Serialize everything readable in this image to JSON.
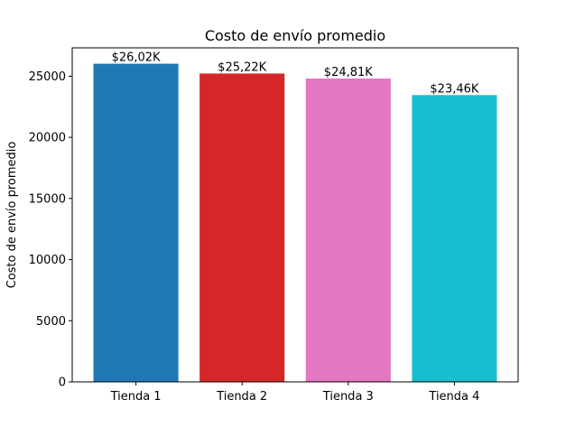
{
  "chart_data": {
    "type": "bar",
    "title": "Costo de envío promedio",
    "xlabel": "",
    "ylabel": "Costo de envío promedio",
    "categories": [
      "Tienda 1",
      "Tienda 2",
      "Tienda 3",
      "Tienda 4"
    ],
    "values": [
      26020,
      25220,
      24810,
      23460
    ],
    "data_labels": [
      "$26,02K",
      "$25,22K",
      "$24,81K",
      "$23,46K"
    ],
    "colors": [
      "#1f77b4",
      "#d62728",
      "#e377c2",
      "#17becf"
    ],
    "ylim": [
      0,
      27320
    ],
    "yticks": [
      0,
      5000,
      10000,
      15000,
      20000,
      25000
    ],
    "grid": false,
    "legend": "none"
  }
}
